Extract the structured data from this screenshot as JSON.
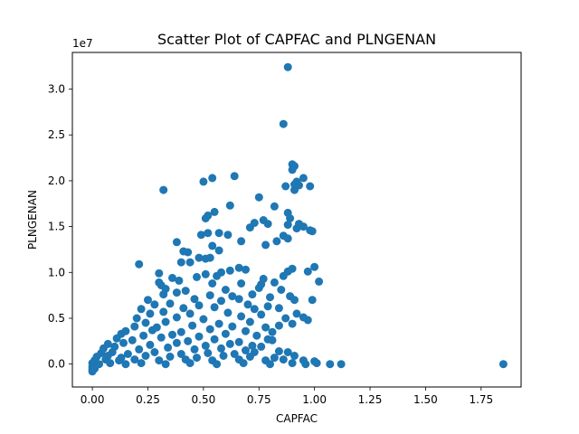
{
  "chart_data": {
    "type": "scatter",
    "title": "Scatter Plot of CAPFAC and PLNGENAN",
    "xlabel": "CAPFAC",
    "ylabel": "PLNGENAN",
    "y_offset_label": "1e7",
    "xlim": [
      -0.09,
      1.93
    ],
    "ylim": [
      -2500000,
      34000000
    ],
    "x_ticks": [
      0.0,
      0.25,
      0.5,
      0.75,
      1.0,
      1.25,
      1.5,
      1.75
    ],
    "x_tick_labels": [
      "0.00",
      "0.25",
      "0.50",
      "0.75",
      "1.00",
      "1.25",
      "1.50",
      "1.75"
    ],
    "y_ticks": [
      0,
      5000000,
      10000000,
      15000000,
      20000000,
      25000000,
      30000000
    ],
    "y_tick_labels": [
      "0.0",
      "0.5",
      "1.0",
      "1.5",
      "2.0",
      "2.5",
      "3.0"
    ],
    "grid": false,
    "legend": "none",
    "marker_color": "#1f77b4",
    "points": [
      [
        0.88,
        32400000
      ],
      [
        0.86,
        26200000
      ],
      [
        0.9,
        21800000
      ],
      [
        0.91,
        21600000
      ],
      [
        0.9,
        21200000
      ],
      [
        0.64,
        20500000
      ],
      [
        0.54,
        20300000
      ],
      [
        0.95,
        20300000
      ],
      [
        0.5,
        19900000
      ],
      [
        0.92,
        19900000
      ],
      [
        0.91,
        19600000
      ],
      [
        0.87,
        19400000
      ],
      [
        0.93,
        19500000
      ],
      [
        0.98,
        19400000
      ],
      [
        0.32,
        19000000
      ],
      [
        0.91,
        19000000
      ],
      [
        0.75,
        18200000
      ],
      [
        0.55,
        16600000
      ],
      [
        0.52,
        16200000
      ],
      [
        0.88,
        16500000
      ],
      [
        0.51,
        15900000
      ],
      [
        0.89,
        15900000
      ],
      [
        0.82,
        17200000
      ],
      [
        0.62,
        17300000
      ],
      [
        0.73,
        15400000
      ],
      [
        0.77,
        15700000
      ],
      [
        0.79,
        15300000
      ],
      [
        0.88,
        15200000
      ],
      [
        0.93,
        15300000
      ],
      [
        0.95,
        15000000
      ],
      [
        0.71,
        14900000
      ],
      [
        0.92,
        14800000
      ],
      [
        0.98,
        14600000
      ],
      [
        0.99,
        14500000
      ],
      [
        0.52,
        14300000
      ],
      [
        0.57,
        14300000
      ],
      [
        0.49,
        14100000
      ],
      [
        0.61,
        14100000
      ],
      [
        0.86,
        14000000
      ],
      [
        0.67,
        13400000
      ],
      [
        0.83,
        13400000
      ],
      [
        0.88,
        13700000
      ],
      [
        0.38,
        13300000
      ],
      [
        0.78,
        13000000
      ],
      [
        0.54,
        12900000
      ],
      [
        0.41,
        12300000
      ],
      [
        0.43,
        12200000
      ],
      [
        0.57,
        12400000
      ],
      [
        0.51,
        11500000
      ],
      [
        0.48,
        11600000
      ],
      [
        0.53,
        11600000
      ],
      [
        0.21,
        10900000
      ],
      [
        0.4,
        11100000
      ],
      [
        0.44,
        11100000
      ],
      [
        1.0,
        10600000
      ],
      [
        0.66,
        10500000
      ],
      [
        0.69,
        10300000
      ],
      [
        0.9,
        10400000
      ],
      [
        0.3,
        9900000
      ],
      [
        0.51,
        9800000
      ],
      [
        0.58,
        10000000
      ],
      [
        0.62,
        10200000
      ],
      [
        0.88,
        10100000
      ],
      [
        0.97,
        10100000
      ],
      [
        0.36,
        9400000
      ],
      [
        0.47,
        9500000
      ],
      [
        0.56,
        9600000
      ],
      [
        0.77,
        9300000
      ],
      [
        0.86,
        9600000
      ],
      [
        0.3,
        8900000
      ],
      [
        0.31,
        8600000
      ],
      [
        0.39,
        9100000
      ],
      [
        0.54,
        8800000
      ],
      [
        0.67,
        8800000
      ],
      [
        0.76,
        8700000
      ],
      [
        0.82,
        8900000
      ],
      [
        1.02,
        9000000
      ],
      [
        0.33,
        8200000
      ],
      [
        0.42,
        8000000
      ],
      [
        0.6,
        8100000
      ],
      [
        0.75,
        8300000
      ],
      [
        0.85,
        8100000
      ],
      [
        0.32,
        7600000
      ],
      [
        0.38,
        7800000
      ],
      [
        0.53,
        7500000
      ],
      [
        0.63,
        7400000
      ],
      [
        0.72,
        7600000
      ],
      [
        0.8,
        7300000
      ],
      [
        0.89,
        7400000
      ],
      [
        0.25,
        7000000
      ],
      [
        0.46,
        7100000
      ],
      [
        0.58,
        6900000
      ],
      [
        0.66,
        7100000
      ],
      [
        0.91,
        7000000
      ],
      [
        0.99,
        7000000
      ],
      [
        0.28,
        6500000
      ],
      [
        0.35,
        6600000
      ],
      [
        0.48,
        6400000
      ],
      [
        0.7,
        6500000
      ],
      [
        0.79,
        6300000
      ],
      [
        0.22,
        6000000
      ],
      [
        0.41,
        6100000
      ],
      [
        0.55,
        6200000
      ],
      [
        0.73,
        6000000
      ],
      [
        0.84,
        6100000
      ],
      [
        0.26,
        5500000
      ],
      [
        0.32,
        5700000
      ],
      [
        0.44,
        5500000
      ],
      [
        0.61,
        5600000
      ],
      [
        0.76,
        5400000
      ],
      [
        0.92,
        5500000
      ],
      [
        0.95,
        5100000
      ],
      [
        0.2,
        5000000
      ],
      [
        0.38,
        5100000
      ],
      [
        0.5,
        4900000
      ],
      [
        0.67,
        5200000
      ],
      [
        0.87,
        5000000
      ],
      [
        0.24,
        4500000
      ],
      [
        0.33,
        4600000
      ],
      [
        0.57,
        4400000
      ],
      [
        0.71,
        4600000
      ],
      [
        0.9,
        4400000
      ],
      [
        0.97,
        4800000
      ],
      [
        0.19,
        4100000
      ],
      [
        0.29,
        4000000
      ],
      [
        0.45,
        4200000
      ],
      [
        0.63,
        4100000
      ],
      [
        0.78,
        4000000
      ],
      [
        0.84,
        4200000
      ],
      [
        0.15,
        3600000
      ],
      [
        0.27,
        3700000
      ],
      [
        0.4,
        3500000
      ],
      [
        0.53,
        3800000
      ],
      [
        0.69,
        3600000
      ],
      [
        0.81,
        3500000
      ],
      [
        0.13,
        3300000
      ],
      [
        0.23,
        3100000
      ],
      [
        0.36,
        3200000
      ],
      [
        0.48,
        3000000
      ],
      [
        0.6,
        3300000
      ],
      [
        0.74,
        3100000
      ],
      [
        0.79,
        2700000
      ],
      [
        0.11,
        2800000
      ],
      [
        0.18,
        2600000
      ],
      [
        0.31,
        2900000
      ],
      [
        0.43,
        2500000
      ],
      [
        0.55,
        2700000
      ],
      [
        0.66,
        2400000
      ],
      [
        0.81,
        2600000
      ],
      [
        0.07,
        2200000
      ],
      [
        0.14,
        2300000
      ],
      [
        0.26,
        2100000
      ],
      [
        0.38,
        2300000
      ],
      [
        0.51,
        2000000
      ],
      [
        0.62,
        2200000
      ],
      [
        0.72,
        2000000
      ],
      [
        0.05,
        1700000
      ],
      [
        0.1,
        1900000
      ],
      [
        0.21,
        1600000
      ],
      [
        0.34,
        1800000
      ],
      [
        0.46,
        1600000
      ],
      [
        0.58,
        1700000
      ],
      [
        0.69,
        1500000
      ],
      [
        0.76,
        1900000
      ],
      [
        0.84,
        1400000
      ],
      [
        0.04,
        1200000
      ],
      [
        0.09,
        1300000
      ],
      [
        0.16,
        1100000
      ],
      [
        0.28,
        1300000
      ],
      [
        0.4,
        1100000
      ],
      [
        0.52,
        1200000
      ],
      [
        0.64,
        1100000
      ],
      [
        0.73,
        1300000
      ],
      [
        0.88,
        1300000
      ],
      [
        0.02,
        800000
      ],
      [
        0.07,
        900000
      ],
      [
        0.13,
        700000
      ],
      [
        0.24,
        900000
      ],
      [
        0.35,
        800000
      ],
      [
        0.47,
        700000
      ],
      [
        0.59,
        900000
      ],
      [
        0.71,
        800000
      ],
      [
        0.82,
        700000
      ],
      [
        0.91,
        900000
      ],
      [
        0.01,
        400000
      ],
      [
        0.06,
        500000
      ],
      [
        0.12,
        400000
      ],
      [
        0.19,
        500000
      ],
      [
        0.3,
        400000
      ],
      [
        0.42,
        500000
      ],
      [
        0.54,
        400000
      ],
      [
        0.66,
        500000
      ],
      [
        0.78,
        400000
      ],
      [
        0.86,
        500000
      ],
      [
        0.95,
        400000
      ],
      [
        1.0,
        300000
      ],
      [
        0.0,
        100000
      ],
      [
        0.03,
        0
      ],
      [
        0.08,
        100000
      ],
      [
        0.15,
        0
      ],
      [
        0.22,
        100000
      ],
      [
        0.33,
        0
      ],
      [
        0.44,
        100000
      ],
      [
        0.56,
        0
      ],
      [
        0.68,
        100000
      ],
      [
        0.8,
        0
      ],
      [
        0.9,
        100000
      ],
      [
        0.96,
        0
      ],
      [
        1.01,
        100000
      ],
      [
        1.07,
        0
      ],
      [
        1.12,
        0
      ],
      [
        1.85,
        0
      ],
      [
        0.0,
        -300000
      ],
      [
        0.0,
        -600000
      ],
      [
        0.0,
        -800000
      ],
      [
        0.01,
        -500000
      ]
    ]
  }
}
